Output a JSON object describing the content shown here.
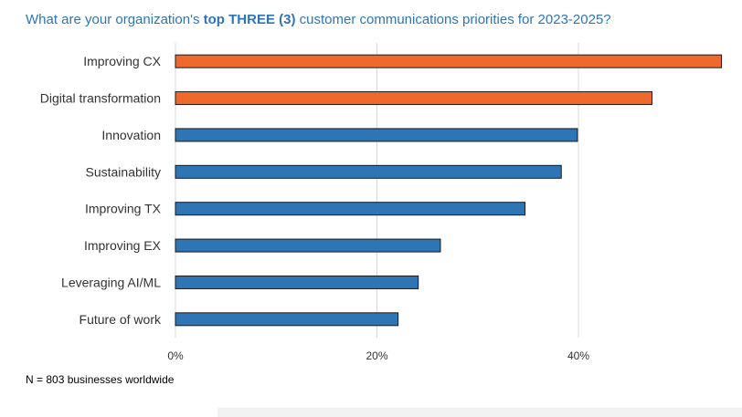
{
  "title": {
    "prefix": "What are your organization's ",
    "bold": "top THREE (3)",
    "suffix": " customer communications priorities for 2023-2025?"
  },
  "note": "N = 803 businesses worldwide",
  "colors": {
    "highlight": "#ed6a2c",
    "default": "#2e75b6",
    "grid": "#d9d9d9",
    "title": "#2e75b6"
  },
  "chart_data": {
    "type": "bar",
    "orientation": "horizontal",
    "categories": [
      "Improving CX",
      "Digital transformation",
      "Innovation",
      "Sustainability",
      "Improving TX",
      "Improving EX",
      "Leveraging AI/ML",
      "Future of work"
    ],
    "values": [
      54.2,
      47.3,
      39.9,
      38.3,
      34.7,
      26.3,
      24.1,
      22.1
    ],
    "highlighted": [
      true,
      true,
      false,
      false,
      false,
      false,
      false,
      false
    ],
    "x_ticks": [
      "0%",
      "20%",
      "40%"
    ],
    "xlim": [
      0,
      54.2
    ],
    "xlabel": "",
    "ylabel": "",
    "grid": "vertical",
    "legend": "none"
  }
}
